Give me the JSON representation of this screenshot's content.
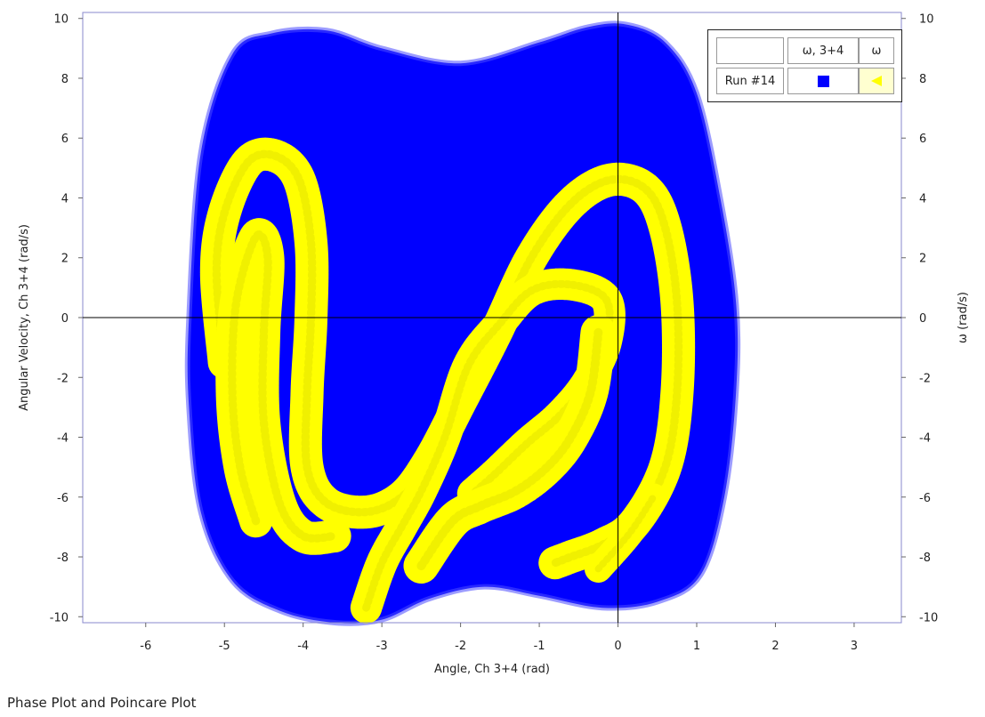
{
  "caption": "Phase Plot and Poincare Plot",
  "legend": {
    "header_blank": "",
    "header_series1": "ω, 3+4",
    "header_series2": "ω",
    "row_label": "Run #14"
  },
  "chart_data": {
    "type": "scatter",
    "title": "",
    "xlabel": "Angle, Ch 3+4 (rad)",
    "ylabel": "Angular Velocity, Ch 3+4 (rad/s)",
    "y2label": "ω (rad/s)",
    "xlim": [
      -6.8,
      3.6
    ],
    "ylim": [
      -10.2,
      10.2
    ],
    "x_ticks": [
      -6,
      -5,
      -4,
      -3,
      -2,
      -1,
      0,
      1,
      2,
      3
    ],
    "y_ticks": [
      -10,
      -8,
      -6,
      -4,
      -2,
      0,
      2,
      4,
      6,
      8,
      10
    ],
    "grid": false,
    "legend_position": "top-right",
    "series": [
      {
        "name": "ω, 3+4",
        "color": "#0000ff",
        "marker": "square",
        "role": "filled phase region",
        "boundary": [
          [
            -5.45,
            0
          ],
          [
            -5.3,
            5.5
          ],
          [
            -4.9,
            8.8
          ],
          [
            -4.4,
            9.5
          ],
          [
            -3.7,
            9.6
          ],
          [
            -3.0,
            9.0
          ],
          [
            -2.0,
            8.5
          ],
          [
            -1.0,
            9.2
          ],
          [
            -0.4,
            9.7
          ],
          [
            0.1,
            9.8
          ],
          [
            0.6,
            9.2
          ],
          [
            1.0,
            7.5
          ],
          [
            1.3,
            4.0
          ],
          [
            1.5,
            0.5
          ],
          [
            1.5,
            -2.5
          ],
          [
            1.35,
            -6.0
          ],
          [
            1.05,
            -8.6
          ],
          [
            0.5,
            -9.5
          ],
          [
            -0.2,
            -9.7
          ],
          [
            -1.0,
            -9.3
          ],
          [
            -1.7,
            -9.0
          ],
          [
            -2.4,
            -9.4
          ],
          [
            -3.0,
            -10.1
          ],
          [
            -3.6,
            -10.2
          ],
          [
            -4.3,
            -9.8
          ],
          [
            -4.9,
            -8.8
          ],
          [
            -5.3,
            -6.5
          ],
          [
            -5.45,
            -3.0
          ]
        ]
      },
      {
        "name": "ω",
        "color": "#ffff00",
        "marker": "triangle-left",
        "role": "Poincare section points",
        "paths": [
          {
            "width": 0.42,
            "points": [
              [
                -5.0,
                -1.5
              ],
              [
                -5.1,
                1.5
              ],
              [
                -5.0,
                3.5
              ],
              [
                -4.7,
                5.2
              ],
              [
                -4.35,
                5.4
              ],
              [
                -4.05,
                4.6
              ],
              [
                -3.9,
                2.5
              ],
              [
                -3.9,
                0.0
              ],
              [
                -3.95,
                -2.5
              ],
              [
                -3.95,
                -5.0
              ],
              [
                -3.7,
                -6.2
              ],
              [
                -3.2,
                -6.5
              ],
              [
                -2.75,
                -6.0
              ],
              [
                -2.4,
                -4.8
              ],
              [
                -2.0,
                -2.8
              ],
              [
                -1.55,
                -0.5
              ],
              [
                -1.1,
                2.0
              ],
              [
                -0.6,
                3.8
              ],
              [
                -0.1,
                4.6
              ],
              [
                0.35,
                4.3
              ],
              [
                0.6,
                3.0
              ],
              [
                0.75,
                0.5
              ],
              [
                0.75,
                -2.5
              ],
              [
                0.6,
                -5.0
              ],
              [
                0.2,
                -6.9
              ],
              [
                -0.2,
                -7.6
              ],
              [
                -0.6,
                -8.0
              ],
              [
                -0.8,
                -8.2
              ]
            ]
          },
          {
            "width": 0.42,
            "points": [
              [
                -4.6,
                -6.8
              ],
              [
                -4.8,
                -5.0
              ],
              [
                -4.9,
                -2.5
              ],
              [
                -4.85,
                0.5
              ],
              [
                -4.6,
                2.7
              ],
              [
                -4.45,
                2.0
              ],
              [
                -4.5,
                -0.5
              ],
              [
                -4.5,
                -3.5
              ],
              [
                -4.3,
                -6.2
              ],
              [
                -4.0,
                -7.3
              ],
              [
                -3.6,
                -7.3
              ]
            ]
          },
          {
            "width": 0.4,
            "points": [
              [
                -3.2,
                -9.7
              ],
              [
                -3.0,
                -8.2
              ],
              [
                -2.75,
                -7.0
              ],
              [
                -2.5,
                -5.8
              ],
              [
                -2.2,
                -4.0
              ],
              [
                -1.9,
                -1.6
              ],
              [
                -1.5,
                -0.2
              ],
              [
                -1.1,
                0.9
              ],
              [
                -0.6,
                1.1
              ],
              [
                -0.15,
                0.6
              ],
              [
                -0.15,
                -0.8
              ],
              [
                -0.4,
                -2.2
              ],
              [
                -0.75,
                -3.3
              ],
              [
                -1.15,
                -4.2
              ],
              [
                -1.55,
                -5.2
              ],
              [
                -1.85,
                -5.9
              ]
            ]
          },
          {
            "width": 0.45,
            "points": [
              [
                -2.5,
                -8.3
              ],
              [
                -2.1,
                -6.8
              ],
              [
                -1.75,
                -6.3
              ],
              [
                -1.3,
                -5.8
              ],
              [
                -0.9,
                -5.0
              ],
              [
                -0.6,
                -4.0
              ],
              [
                -0.35,
                -2.5
              ],
              [
                -0.25,
                -0.5
              ]
            ]
          },
          {
            "width": 0.35,
            "points": [
              [
                -0.25,
                -8.4
              ],
              [
                0.15,
                -7.2
              ],
              [
                0.45,
                -6.0
              ]
            ]
          }
        ]
      }
    ]
  }
}
